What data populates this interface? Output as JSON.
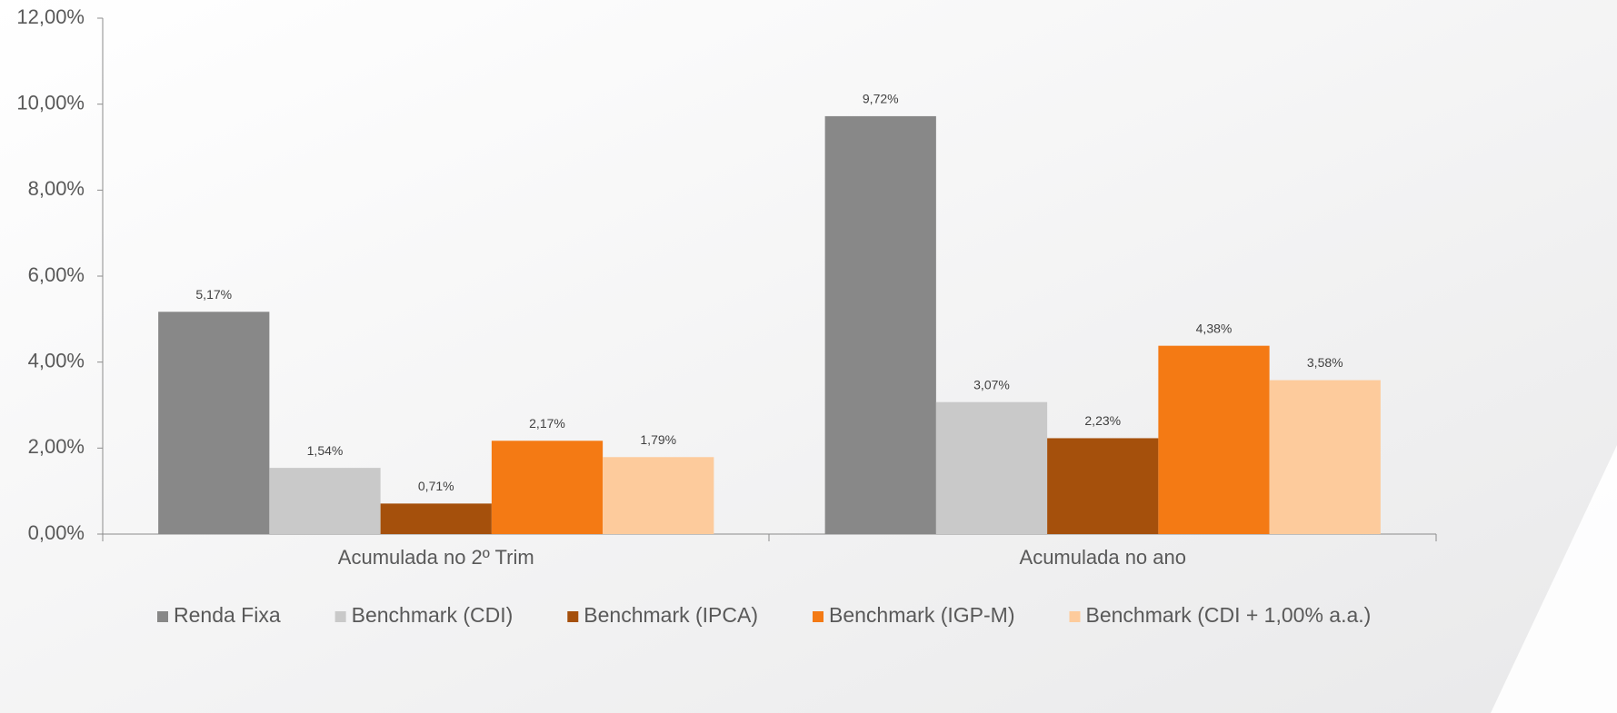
{
  "chart_data": {
    "type": "bar",
    "categories": [
      "Acumulada no 2º Trim",
      "Acumulada no ano"
    ],
    "series": [
      {
        "name": "Renda Fixa",
        "color": "#888888",
        "values": [
          5.17,
          9.72
        ],
        "value_labels": [
          "5,17%",
          "9,72%"
        ]
      },
      {
        "name": "Benchmark (CDI)",
        "color": "#c9c9c9",
        "values": [
          1.54,
          3.07
        ],
        "value_labels": [
          "1,54%",
          "3,07%"
        ]
      },
      {
        "name": "Benchmark (IPCA)",
        "color": "#a5500c",
        "values": [
          0.71,
          2.23
        ],
        "value_labels": [
          "0,71%",
          "2,23%"
        ]
      },
      {
        "name": "Benchmark (IGP-M)",
        "color": "#f47a14",
        "values": [
          2.17,
          4.38
        ],
        "value_labels": [
          "2,17%",
          "4,38%"
        ]
      },
      {
        "name": "Benchmark (CDI + 1,00% a.a.)",
        "color": "#fdcb9c",
        "values": [
          1.79,
          3.58
        ],
        "value_labels": [
          "1,79%",
          "3,58%"
        ]
      }
    ],
    "ylim": [
      0,
      12
    ],
    "yticks": [
      {
        "value": 0,
        "label": "0,00%"
      },
      {
        "value": 2,
        "label": "2,00%"
      },
      {
        "value": 4,
        "label": "4,00%"
      },
      {
        "value": 6,
        "label": "6,00%"
      },
      {
        "value": 8,
        "label": "8,00%"
      },
      {
        "value": 10,
        "label": "10,00%"
      },
      {
        "value": 12,
        "label": "12,00%"
      }
    ],
    "grid": false,
    "legend": "bottom"
  }
}
